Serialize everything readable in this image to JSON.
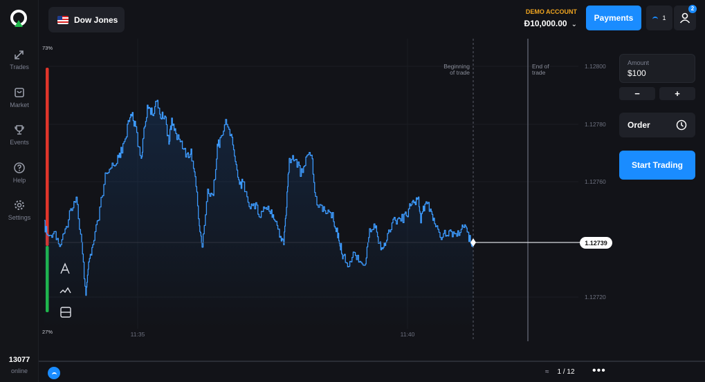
{
  "sidebar": {
    "items": [
      {
        "label": "Trades",
        "icon": "trades-arrows-icon"
      },
      {
        "label": "Market",
        "icon": "market-bag-icon"
      },
      {
        "label": "Events",
        "icon": "trophy-icon"
      },
      {
        "label": "Help",
        "icon": "help-circle-icon"
      },
      {
        "label": "Settings",
        "icon": "gear-icon"
      }
    ],
    "online_count": "13077",
    "online_label": "online"
  },
  "header": {
    "asset": "Dow Jones",
    "account_mode": "DEMO ACCOUNT",
    "balance": "Đ10,000.00",
    "payments_label": "Payments",
    "level": "1",
    "notifications": "2"
  },
  "chart": {
    "up_percent": "73%",
    "down_percent": "27%",
    "y_ticks": [
      "1.12800",
      "1.12780",
      "1.12760",
      "1.12720"
    ],
    "x_ticks": [
      "11:35",
      "11:40"
    ],
    "current_price": "1.12739",
    "begin_label_1": "Beginning",
    "begin_label_2": "of trade",
    "end_label_1": "End of",
    "end_label_2": "trade",
    "line_color": "#3d9bff",
    "sentiment_up_color": "#1fb84a",
    "sentiment_down_color": "#e0352b"
  },
  "trade_panel": {
    "amount_label": "Amount",
    "amount_value": "$100",
    "minus_label": "−",
    "plus_label": "+",
    "order_label": "Order",
    "start_label": "Start Trading"
  },
  "bottom": {
    "page": "1 / 12",
    "more": "•••"
  }
}
